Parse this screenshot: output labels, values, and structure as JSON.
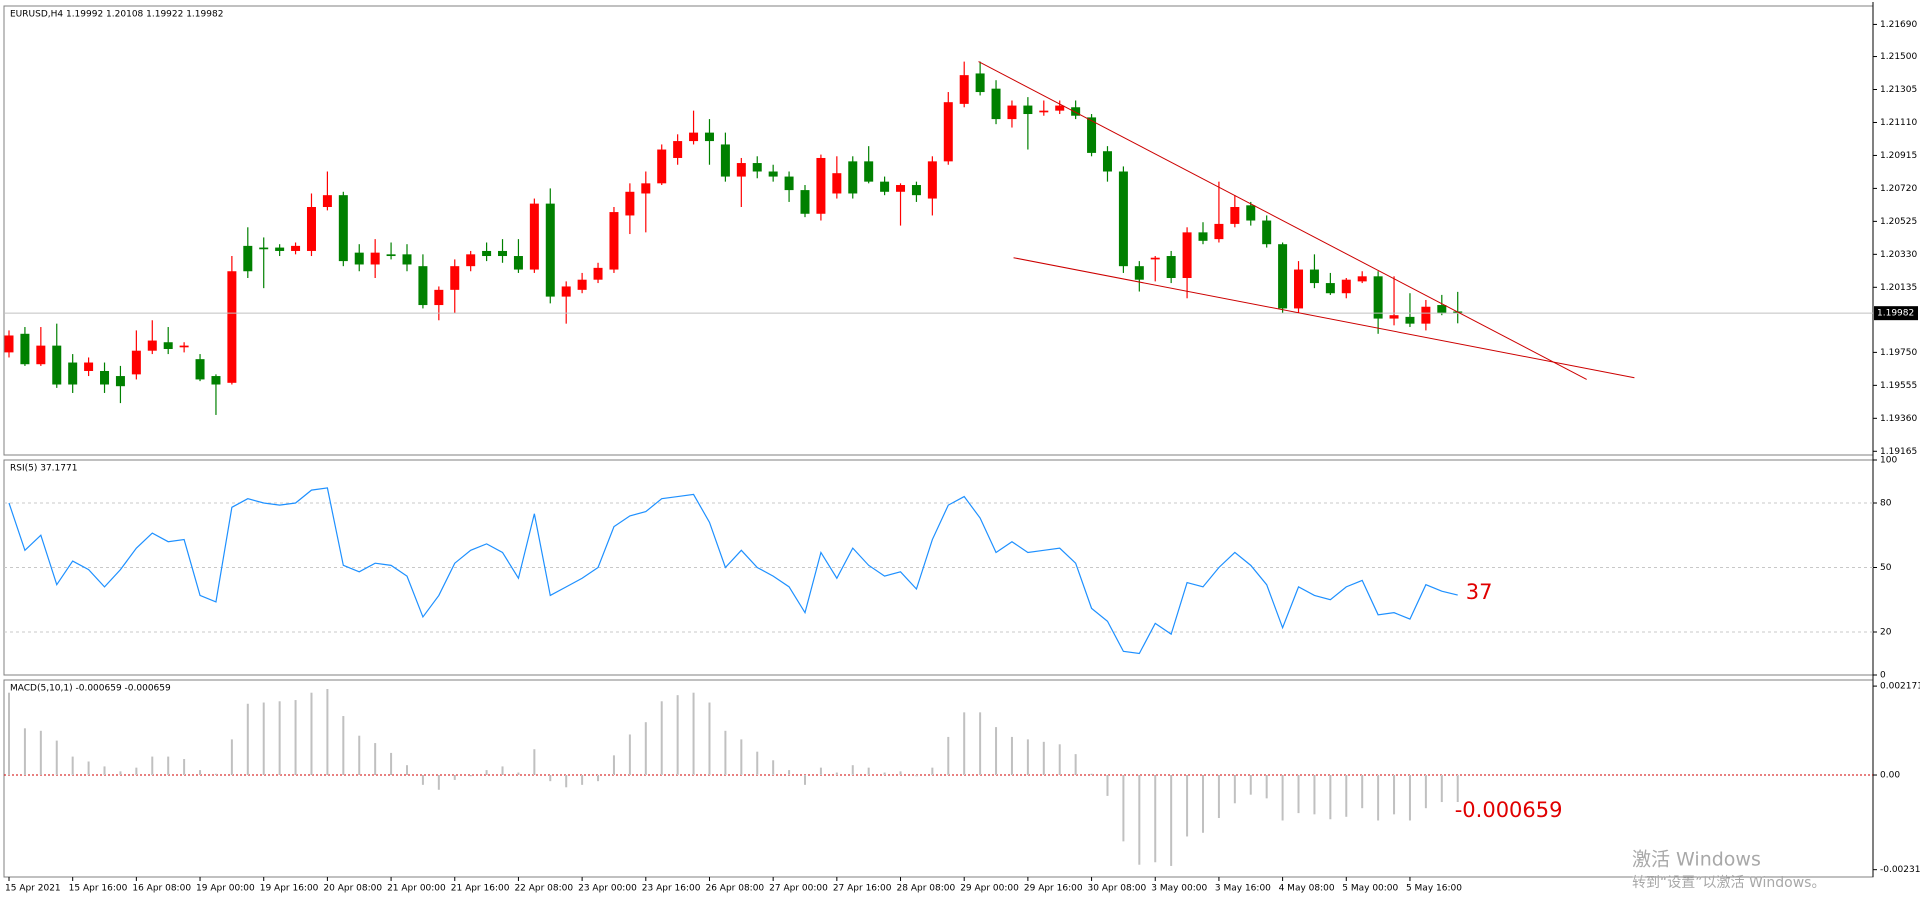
{
  "chart_data": [
    {
      "type": "candlestick",
      "title": "EURUSD,H4  1.19992 1.20108 1.19922 1.19982",
      "up_color": "#ff0000",
      "down_color": "#008000",
      "price_line_color": "#c0c0c0",
      "categories": [
        "15 Apr 2021",
        null,
        null,
        null,
        "15 Apr 16:00",
        null,
        null,
        null,
        "16 Apr 08:00",
        null,
        null,
        null,
        "19 Apr 00:00",
        null,
        null,
        null,
        "19 Apr 16:00",
        null,
        null,
        null,
        "20 Apr 08:00",
        null,
        null,
        null,
        "21 Apr 00:00",
        null,
        null,
        null,
        "21 Apr 16:00",
        null,
        null,
        null,
        "22 Apr 08:00",
        null,
        null,
        null,
        "23 Apr 00:00",
        null,
        null,
        null,
        "23 Apr 16:00",
        null,
        null,
        null,
        "26 Apr 08:00",
        null,
        null,
        null,
        "27 Apr 00:00",
        null,
        null,
        null,
        "27 Apr 16:00",
        null,
        null,
        null,
        "28 Apr 08:00",
        null,
        null,
        null,
        "29 Apr 00:00",
        null,
        null,
        null,
        "29 Apr 16:00",
        null,
        null,
        null,
        "30 Apr 08:00",
        null,
        null,
        null,
        "3 May 00:00",
        null,
        null,
        null,
        "3 May 16:00",
        null,
        null,
        null,
        "4 May 08:00",
        null,
        null,
        null,
        "5 May 00:00",
        null,
        null,
        null,
        "5 May 16:00",
        null,
        null,
        null
      ],
      "open": [
        1.1975,
        1.1986,
        1.1968,
        1.1979,
        1.1969,
        1.1964,
        1.1964,
        1.1961,
        1.1962,
        1.1976,
        1.1981,
        1.1978,
        1.1971,
        1.1961,
        1.1957,
        1.2038,
        1.2037,
        1.2037,
        1.2035,
        1.2035,
        1.2061,
        1.2068,
        1.2034,
        1.2027,
        1.2033,
        1.2033,
        1.2026,
        1.2003,
        1.2012,
        1.2026,
        1.2035,
        1.2035,
        1.2032,
        1.2024,
        1.2063,
        1.2008,
        1.2012,
        1.2018,
        1.2024,
        1.2056,
        1.2069,
        1.2075,
        1.209,
        1.21,
        1.2105,
        1.2098,
        1.2079,
        1.2087,
        1.2082,
        1.2079,
        1.2071,
        1.2057,
        1.2069,
        1.2088,
        1.2088,
        1.2076,
        1.207,
        1.2074,
        1.2066,
        1.2088,
        1.2122,
        1.214,
        1.2131,
        1.2113,
        1.2121,
        1.2117,
        1.2118,
        1.212,
        1.2114,
        1.2094,
        1.2082,
        1.2026,
        1.203,
        1.2032,
        1.2019,
        1.2046,
        1.2042,
        1.2051,
        1.2062,
        1.2053,
        1.2039,
        1.2001,
        1.2024,
        1.2016,
        1.201,
        1.2017,
        1.202,
        1.1995,
        1.1996,
        1.1992,
        1.2003,
        1.19992
      ],
      "high": [
        1.1988,
        1.199,
        1.199,
        1.1992,
        1.1974,
        1.1972,
        1.1969,
        1.1967,
        1.1988,
        1.1994,
        1.199,
        1.1981,
        1.1974,
        1.1962,
        1.2032,
        1.2049,
        1.2043,
        1.2039,
        1.204,
        1.2069,
        1.2082,
        1.207,
        1.2039,
        1.2042,
        1.204,
        1.2039,
        1.2033,
        1.2014,
        1.203,
        1.2035,
        1.204,
        1.2042,
        1.2042,
        1.2066,
        1.2072,
        1.2017,
        1.2022,
        1.2028,
        1.2061,
        1.2075,
        1.2082,
        1.2098,
        1.2104,
        1.2118,
        1.2113,
        1.2105,
        1.209,
        1.2091,
        1.2086,
        1.2082,
        1.2074,
        1.2092,
        1.2091,
        1.2091,
        1.2097,
        1.2079,
        1.2075,
        1.2076,
        1.2091,
        1.2129,
        1.2147,
        1.2147,
        1.2136,
        1.2124,
        1.2126,
        1.2124,
        1.2124,
        1.2124,
        1.2116,
        1.2097,
        1.2085,
        1.2029,
        1.2032,
        1.2035,
        1.2049,
        1.2052,
        1.2076,
        1.2068,
        1.2064,
        1.2056,
        1.204,
        1.2029,
        1.2033,
        1.2022,
        1.2019,
        1.2023,
        1.2023,
        1.202,
        1.201,
        1.2006,
        1.2009,
        1.20108
      ],
      "low": [
        1.1972,
        1.1967,
        1.1967,
        1.1954,
        1.1951,
        1.1961,
        1.1951,
        1.1945,
        1.1959,
        1.1974,
        1.1974,
        1.1975,
        1.1958,
        1.1938,
        1.1956,
        1.2019,
        1.2013,
        1.2032,
        1.2033,
        1.2032,
        1.2059,
        1.2026,
        1.2023,
        1.2019,
        1.203,
        1.2023,
        1.2001,
        1.1994,
        1.1998,
        1.2023,
        1.2029,
        1.2028,
        1.2022,
        1.2022,
        1.2004,
        1.1992,
        1.201,
        1.2016,
        1.2022,
        1.2045,
        1.2046,
        1.2074,
        1.2086,
        1.2098,
        1.2086,
        1.2076,
        1.2061,
        1.2078,
        1.2076,
        1.2064,
        1.2055,
        1.2053,
        1.2066,
        1.2066,
        1.2075,
        1.2068,
        1.205,
        1.2064,
        1.2056,
        1.2086,
        1.212,
        1.2127,
        1.211,
        1.2108,
        1.2095,
        1.2115,
        1.2116,
        1.2113,
        1.2091,
        1.2076,
        1.2022,
        1.2011,
        1.2017,
        1.2016,
        1.2007,
        1.2039,
        1.204,
        1.2049,
        1.205,
        1.2037,
        1.1998,
        1.1998,
        1.2013,
        1.2009,
        1.2007,
        1.2016,
        1.1986,
        1.1991,
        1.199,
        1.1988,
        1.1997,
        1.19922
      ],
      "close": [
        1.1985,
        1.1968,
        1.1979,
        1.1956,
        1.1956,
        1.1969,
        1.1956,
        1.1955,
        1.1976,
        1.1982,
        1.1977,
        1.1979,
        1.1959,
        1.1956,
        1.2023,
        1.2023,
        1.2036,
        1.2035,
        1.2038,
        1.2061,
        1.2068,
        1.2029,
        1.2027,
        1.2034,
        1.2032,
        1.2027,
        1.2003,
        1.2012,
        1.2026,
        1.2033,
        1.2032,
        1.2032,
        1.2024,
        1.2063,
        1.2008,
        1.2014,
        1.2018,
        1.2025,
        1.2058,
        1.207,
        1.2075,
        1.2095,
        1.21,
        1.2105,
        1.21,
        1.2079,
        1.2087,
        1.2082,
        1.2079,
        1.2071,
        1.2057,
        1.209,
        1.2081,
        1.2069,
        1.2076,
        1.207,
        1.2074,
        1.2068,
        1.2088,
        1.2123,
        1.2139,
        1.2129,
        1.2113,
        1.2121,
        1.2116,
        1.2118,
        1.2121,
        1.2115,
        1.2093,
        1.2082,
        1.2026,
        1.2018,
        1.2031,
        1.2019,
        1.2046,
        1.2041,
        1.2051,
        1.2061,
        1.2053,
        1.2039,
        1.2001,
        1.2024,
        1.2016,
        1.201,
        1.2018,
        1.202,
        1.1995,
        1.1997,
        1.1992,
        1.2002,
        1.1998,
        1.19982
      ],
      "trendlines": [
        {
          "x": [
            60.9,
            99.1
          ],
          "y": [
            1.2147,
            1.1959
          ],
          "color": "#cc0000"
        },
        {
          "x": [
            63.1,
            102.1
          ],
          "y": [
            1.2031,
            1.196
          ],
          "color": "#cc0000"
        }
      ],
      "ylim": [
        1.19143,
        1.21799
      ],
      "yticks": [
        {
          "value": 1.2169,
          "label": "1.21690"
        },
        {
          "value": 1.215,
          "label": "1.21500"
        },
        {
          "value": 1.21305,
          "label": "1.21305"
        },
        {
          "value": 1.2111,
          "label": "1.21110"
        },
        {
          "value": 1.20915,
          "label": "1.20915"
        },
        {
          "value": 1.2072,
          "label": "1.20720"
        },
        {
          "value": 1.20525,
          "label": "1.20525"
        },
        {
          "value": 1.2033,
          "label": "1.20330"
        },
        {
          "value": 1.20135,
          "label": "1.20135"
        },
        {
          "value": 1.1975,
          "label": "1.19750"
        },
        {
          "value": 1.19555,
          "label": "1.19555"
        },
        {
          "value": 1.1936,
          "label": "1.19360"
        },
        {
          "value": 1.19165,
          "label": "1.19165"
        }
      ],
      "grid": false
    },
    {
      "type": "line",
      "title": "RSI(5) 37.1771",
      "color": "#1e90ff",
      "label_color": "#e00000",
      "values": [
        80,
        58,
        65,
        42,
        53,
        49,
        41,
        49,
        59,
        66,
        62,
        63,
        37,
        34,
        78,
        82,
        80,
        79,
        80,
        86,
        87,
        51,
        48,
        52,
        51,
        46,
        27,
        37,
        52,
        58,
        61,
        57,
        45,
        75,
        37,
        41,
        45,
        50,
        69,
        74,
        76,
        82,
        83,
        84,
        71,
        50,
        58,
        50,
        46,
        41,
        29,
        57,
        45,
        59,
        51,
        46,
        48,
        40,
        63,
        79,
        83,
        73,
        57,
        62,
        57,
        58,
        59,
        52,
        31,
        25,
        11,
        10,
        24,
        19,
        43,
        41,
        50,
        57,
        51,
        42,
        22,
        41,
        37,
        35,
        41,
        44,
        28,
        29,
        26,
        42,
        39,
        37.1771
      ],
      "last_value_label": "37",
      "ylim": [
        0,
        100
      ],
      "yticks": [
        0,
        20,
        50,
        80,
        100
      ],
      "grid": true
    },
    {
      "type": "bar",
      "title": "MACD(5,10,1) -0.000659 -0.000659",
      "color": "#c0c0c0",
      "label_color": "#e00000",
      "zero_line_color": "#d00000",
      "values": [
        0.00201,
        0.00114,
        0.00108,
        0.00084,
        0.00045,
        0.00033,
        0.00021,
        9e-05,
        0.00018,
        0.00045,
        0.00045,
        0.00039,
        0.00012,
        3e-05,
        0.00087,
        0.00174,
        0.00177,
        0.0018,
        0.00183,
        0.00201,
        0.0021,
        0.00144,
        0.00096,
        0.00078,
        0.00054,
        0.00024,
        -0.00024,
        -0.00036,
        -0.00012,
        -3e-05,
        0.00012,
        0.00021,
        6e-05,
        0.00063,
        -0.00015,
        -0.0003,
        -0.00024,
        -0.00015,
        0.00048,
        0.00099,
        0.00129,
        0.0018,
        0.00195,
        0.00201,
        0.00177,
        0.00108,
        0.00087,
        0.00057,
        0.00036,
        0.00012,
        -0.00024,
        0.00018,
        6e-05,
        0.00024,
        0.00018,
        6e-05,
        9e-05,
        -3e-05,
        0.00018,
        0.00093,
        0.00153,
        0.00153,
        0.00117,
        0.00093,
        0.00087,
        0.00081,
        0.00075,
        0.00051,
        3e-05,
        -0.00051,
        -0.00162,
        -0.00219,
        -0.00213,
        -0.00222,
        -0.0015,
        -0.00141,
        -0.00105,
        -0.00069,
        -0.00048,
        -0.00057,
        -0.00111,
        -0.00093,
        -0.00096,
        -0.00108,
        -0.00102,
        -0.00081,
        -0.00111,
        -0.00096,
        -0.00111,
        -0.00081,
        -0.00066,
        -0.000659
      ],
      "ylim": [
        -0.00249,
        0.00232
      ],
      "yticks": [
        0.002171,
        {
          "value": 0,
          "label": "0.00"
        },
        -0.002311
      ],
      "grid": false
    }
  ],
  "watermark": {
    "line1": "激活 Windows",
    "line2": "转到“设置”以激活 Windows。"
  }
}
